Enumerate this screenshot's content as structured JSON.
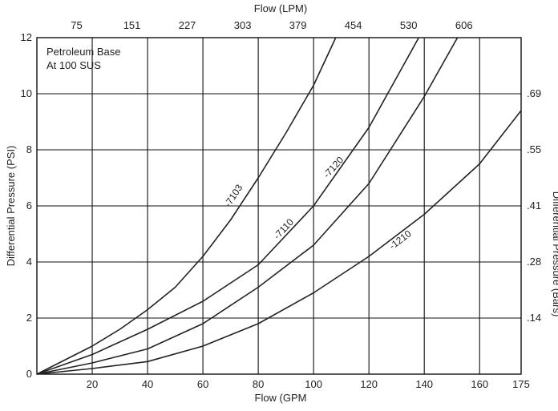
{
  "chart_data": {
    "type": "line",
    "title": "",
    "annotation": [
      "Petroleum Base",
      "At 100 SUS"
    ],
    "xlabel": "Flow (GPM",
    "x2label": "Flow (LPM)",
    "ylabel": "Differential Pressure (PSI)",
    "y2label": "Differential Pressure (Bars)",
    "xlim": [
      0,
      175
    ],
    "ylim": [
      0,
      12
    ],
    "x_ticks": [
      20,
      40,
      60,
      80,
      100,
      120,
      140,
      160,
      175
    ],
    "y_ticks": [
      0,
      2,
      4,
      6,
      8,
      10,
      12
    ],
    "x2_ticks": [
      "75",
      "151",
      "227",
      "303",
      "379",
      "454",
      "530",
      "606"
    ],
    "y2_ticks": [
      ".14",
      ".28",
      ".41",
      ".55",
      ".69"
    ],
    "grid": true,
    "series": [
      {
        "name": "-7103",
        "label_at": [
          72,
          6.3
        ],
        "x": [
          0,
          10,
          20,
          30,
          40,
          50,
          60,
          70,
          80,
          90,
          100,
          108
        ],
        "y": [
          0,
          0.5,
          1.0,
          1.6,
          2.3,
          3.1,
          4.2,
          5.5,
          7.0,
          8.6,
          10.3,
          12.0
        ]
      },
      {
        "name": "-7110",
        "label_at": [
          90,
          5.1
        ],
        "x": [
          0,
          20,
          40,
          60,
          80,
          100,
          120,
          138
        ],
        "y": [
          0,
          0.7,
          1.6,
          2.6,
          3.9,
          6.0,
          8.8,
          12.0
        ]
      },
      {
        "name": "-7120",
        "label_at": [
          108,
          7.3
        ],
        "x": [
          0,
          20,
          40,
          60,
          80,
          100,
          120,
          140,
          152
        ],
        "y": [
          0,
          0.4,
          0.9,
          1.8,
          3.1,
          4.6,
          6.8,
          9.9,
          12.0
        ]
      },
      {
        "name": "-1210",
        "label_at": [
          132,
          4.7
        ],
        "x": [
          0,
          20,
          40,
          60,
          80,
          100,
          120,
          140,
          160,
          175
        ],
        "y": [
          0,
          0.2,
          0.45,
          1.0,
          1.8,
          2.9,
          4.2,
          5.7,
          7.5,
          9.4
        ]
      }
    ]
  }
}
